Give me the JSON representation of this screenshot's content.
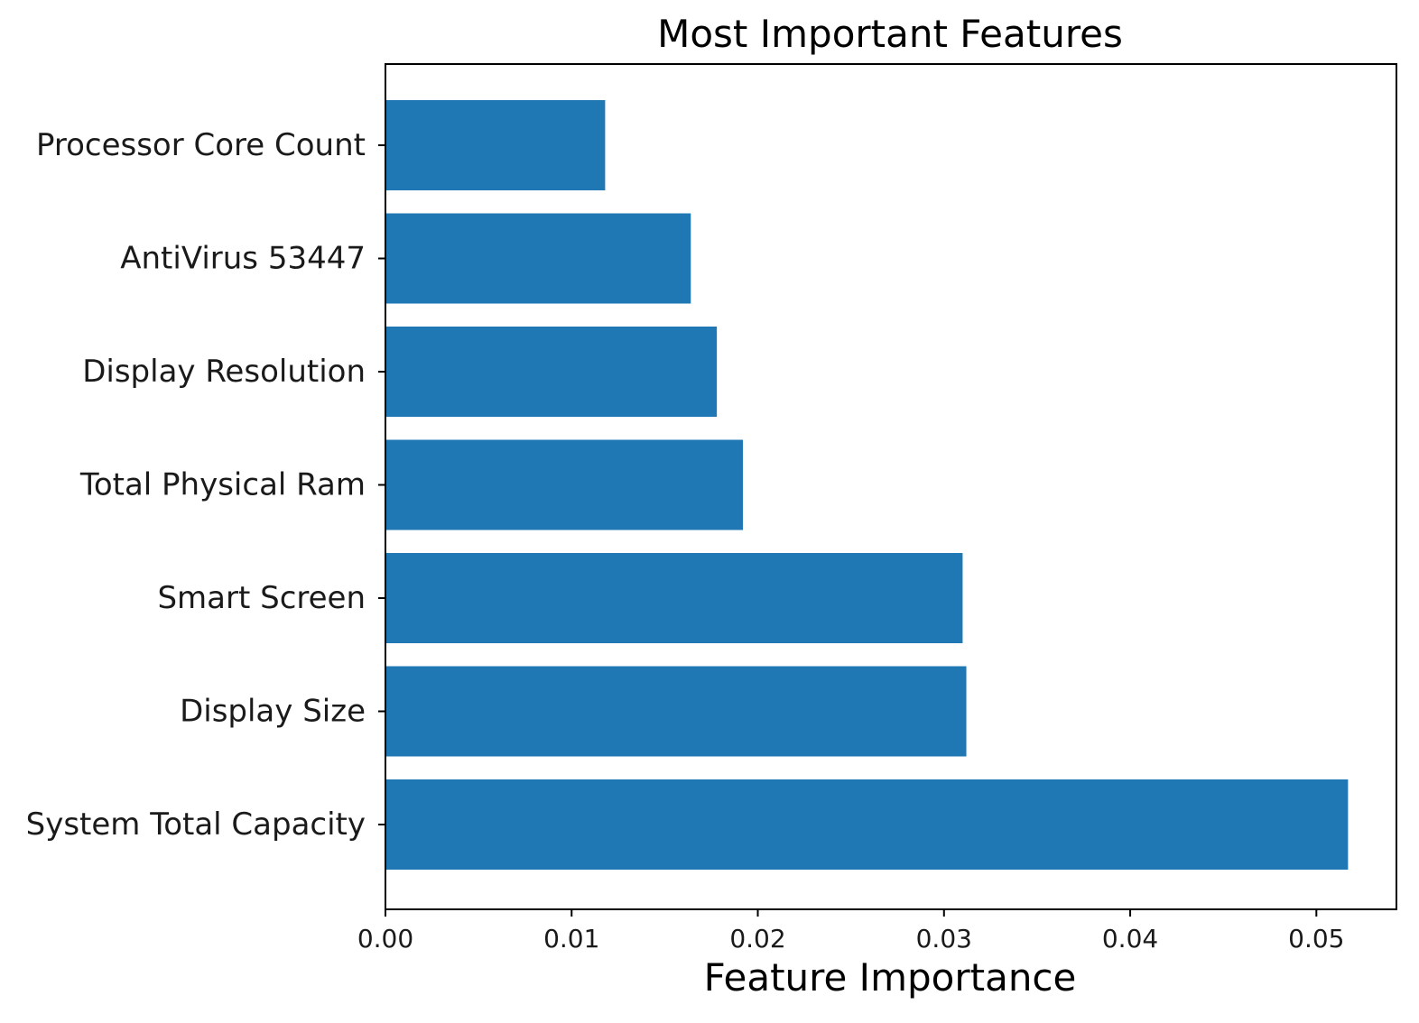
{
  "chart_data": {
    "type": "bar",
    "orientation": "horizontal",
    "title": "Most Important Features",
    "xlabel": "Feature Importance",
    "ylabel": "",
    "xlim": [
      0,
      0.0543
    ],
    "xticks": [
      0.0,
      0.01,
      0.02,
      0.03,
      0.04,
      0.05
    ],
    "xtick_labels": [
      "0.00",
      "0.01",
      "0.02",
      "0.03",
      "0.04",
      "0.05"
    ],
    "categories": [
      "Processor Core Count",
      "AntiVirus 53447",
      "Display Resolution",
      "Total Physical Ram",
      "Smart Screen",
      "Display Size",
      "System Total Capacity"
    ],
    "values": [
      0.0118,
      0.0164,
      0.0178,
      0.0192,
      0.031,
      0.0312,
      0.0517
    ],
    "bar_color": "#1f77b4",
    "grid": false,
    "legend": "none"
  }
}
